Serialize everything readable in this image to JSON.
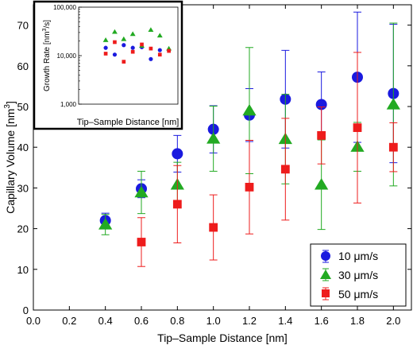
{
  "chart_data": [
    {
      "type": "scatter",
      "xlabel": "Tip–Sample Distance [nm]",
      "ylabel_main": "Capillary Volume [nm",
      "ylabel_sup": "3",
      "ylabel_end": "]",
      "xlim": [
        0.0,
        2.1
      ],
      "ylim": [
        0,
        75
      ],
      "xticks": [
        "0.0",
        "0.2",
        "0.4",
        "0.6",
        "0.8",
        "1.0",
        "1.2",
        "1.4",
        "1.6",
        "1.8",
        "2.0"
      ],
      "xtick_values": [
        0.0,
        0.2,
        0.4,
        0.6,
        0.8,
        1.0,
        1.2,
        1.4,
        1.6,
        1.8,
        2.0
      ],
      "yticks": [
        "0",
        "10",
        "20",
        "30",
        "40",
        "50",
        "60",
        "70"
      ],
      "ytick_values": [
        0,
        10,
        20,
        30,
        40,
        50,
        60,
        70
      ],
      "grid": false,
      "legend_position": "bottom-right",
      "series": [
        {
          "name": "10 μm/s",
          "marker": "circle",
          "color": "#1a1adf",
          "x": [
            0.4,
            0.6,
            0.8,
            1.0,
            1.2,
            1.4,
            1.6,
            1.8,
            2.0
          ],
          "y": [
            22.0,
            29.8,
            38.4,
            44.4,
            47.9,
            51.8,
            50.5,
            57.2,
            53.2
          ],
          "err": [
            1.8,
            2.2,
            4.5,
            5.8,
            6.5,
            12.0,
            8.0,
            16.0,
            17.0
          ]
        },
        {
          "name": "30 μm/s",
          "marker": "triangle",
          "color": "#22aa22",
          "x": [
            0.4,
            0.6,
            0.8,
            1.0,
            1.2,
            1.4,
            1.6,
            1.8,
            2.0
          ],
          "y": [
            21.0,
            28.9,
            30.8,
            42.1,
            49.0,
            42.0,
            30.8,
            40.1,
            50.5
          ],
          "err": [
            2.5,
            5.2,
            5.5,
            8.0,
            15.5,
            11.0,
            11.0,
            6.0,
            20.0
          ]
        },
        {
          "name": "50 μm/s",
          "marker": "square",
          "color": "#ee1c1c",
          "x": [
            0.6,
            0.8,
            1.0,
            1.2,
            1.4,
            1.6,
            1.8,
            2.0
          ],
          "y": [
            16.7,
            26.0,
            20.3,
            30.2,
            34.6,
            42.9,
            44.8,
            40.0
          ],
          "err": [
            6.0,
            9.5,
            8.0,
            11.5,
            12.5,
            7.0,
            18.5,
            6.0
          ]
        }
      ]
    },
    {
      "type": "scatter",
      "xlabel": "Tip–Sample Distance [nm]",
      "ylabel_main": "Growth Rate [nm",
      "ylabel_sup": "3",
      "ylabel_end": "/s]",
      "yscale": "log",
      "xlim": [
        0.0,
        2.2
      ],
      "ylim": [
        1000,
        100000
      ],
      "yticks": [
        "1,000",
        "10,000",
        "100,000"
      ],
      "ytick_values": [
        1000,
        10000,
        100000
      ],
      "grid": false,
      "series": [
        {
          "marker": "circle",
          "color": "#1a1adf",
          "x": [
            0.6,
            0.8,
            1.0,
            1.2,
            1.4,
            1.6,
            1.8,
            2.0
          ],
          "y": [
            14500,
            10500,
            16500,
            14500,
            15000,
            8500,
            13000,
            13000
          ]
        },
        {
          "marker": "triangle",
          "color": "#22aa22",
          "x": [
            0.6,
            0.8,
            1.0,
            1.2,
            1.4,
            1.6,
            1.8,
            2.0
          ],
          "y": [
            21000,
            31000,
            22000,
            28000,
            16000,
            34000,
            26000,
            14000
          ]
        },
        {
          "marker": "square",
          "color": "#ee1c1c",
          "x": [
            0.6,
            0.8,
            1.0,
            1.2,
            1.4,
            1.6,
            1.8,
            2.0
          ],
          "y": [
            11000,
            19000,
            7500,
            12000,
            17000,
            14000,
            10500,
            12500
          ]
        }
      ]
    }
  ]
}
